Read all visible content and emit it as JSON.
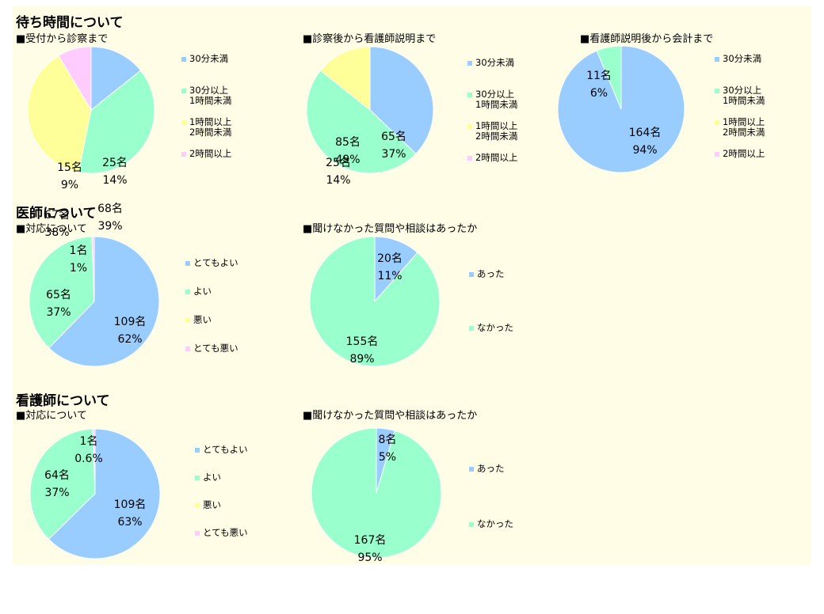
{
  "colors": {
    "blue": "#99ccff",
    "green": "#99ffcc",
    "yellow": "#ffff99",
    "pink": "#ffccff",
    "background": "#fffde6"
  },
  "sections": {
    "waiting": {
      "title": "待ち時間について"
    },
    "doctor": {
      "title": "医師について"
    },
    "nurse": {
      "title": "看護師について"
    }
  },
  "chart_data": [
    {
      "type": "pie",
      "title": "■受付から診察まで",
      "slices": [
        {
          "label": "30分未満",
          "count": "25名",
          "pct": "14%",
          "value": 25,
          "color": "#99ccff"
        },
        {
          "label": "30分以上\n1時間未満",
          "count": "68名",
          "pct": "39%",
          "value": 68,
          "color": "#99ffcc"
        },
        {
          "label": "1時間以上\n2時間未満",
          "count": "67名",
          "pct": "38%",
          "value": 67,
          "color": "#ffff99"
        },
        {
          "label": "2時間以上",
          "count": "15名",
          "pct": "9%",
          "value": 15,
          "color": "#ffccff"
        }
      ]
    },
    {
      "type": "pie",
      "title": "■診察後から看護師説明まで",
      "slices": [
        {
          "label": "30分未満",
          "count": "65名",
          "pct": "37%",
          "value": 65,
          "color": "#99ccff"
        },
        {
          "label": "30分以上\n1時間未満",
          "count": "85名",
          "pct": "49%",
          "value": 85,
          "color": "#99ffcc"
        },
        {
          "label": "1時間以上\n2時間未満",
          "count": "25名",
          "pct": "14%",
          "value": 25,
          "color": "#ffff99"
        },
        {
          "label": "2時間以上",
          "count": "",
          "pct": "",
          "value": 0,
          "color": "#ffccff"
        }
      ]
    },
    {
      "type": "pie",
      "title": "■看護師説明後から会計まで",
      "slices": [
        {
          "label": "30分未満",
          "count": "164名",
          "pct": "94%",
          "value": 164,
          "color": "#99ccff"
        },
        {
          "label": "30分以上\n1時間未満",
          "count": "11名",
          "pct": "6%",
          "value": 11,
          "color": "#99ffcc"
        },
        {
          "label": "1時間以上\n2時間未満",
          "count": "",
          "pct": "",
          "value": 0,
          "color": "#ffff99"
        },
        {
          "label": "2時間以上",
          "count": "",
          "pct": "",
          "value": 0,
          "color": "#ffccff"
        }
      ]
    },
    {
      "type": "pie",
      "title": "■対応について",
      "slices": [
        {
          "label": "とてもよい",
          "count": "109名",
          "pct": "62%",
          "value": 109,
          "color": "#99ccff"
        },
        {
          "label": "よい",
          "count": "65名",
          "pct": "37%",
          "value": 65,
          "color": "#99ffcc"
        },
        {
          "label": "悪い",
          "count": "",
          "pct": "",
          "value": 0,
          "color": "#ffff99"
        },
        {
          "label": "とても悪い",
          "count": "1名",
          "pct": "1%",
          "value": 1,
          "color": "#ffccff"
        }
      ]
    },
    {
      "type": "pie",
      "title": "■聞けなかった質問や相談はあったか",
      "slices": [
        {
          "label": "あった",
          "count": "20名",
          "pct": "11%",
          "value": 20,
          "color": "#99ccff"
        },
        {
          "label": "なかった",
          "count": "155名",
          "pct": "89%",
          "value": 155,
          "color": "#99ffcc"
        }
      ]
    },
    {
      "type": "pie",
      "title": "■対応について",
      "slices": [
        {
          "label": "とてもよい",
          "count": "109名",
          "pct": "63%",
          "value": 109,
          "color": "#99ccff"
        },
        {
          "label": "よい",
          "count": "64名",
          "pct": "37%",
          "value": 64,
          "color": "#99ffcc"
        },
        {
          "label": "悪い",
          "count": "",
          "pct": "",
          "value": 0,
          "color": "#ffff99"
        },
        {
          "label": "とても悪い",
          "count": "1名",
          "pct": "0.6%",
          "value": 1,
          "color": "#ffccff"
        }
      ]
    },
    {
      "type": "pie",
      "title": "■聞けなかった質問や相談はあったか",
      "slices": [
        {
          "label": "あった",
          "count": "8名",
          "pct": "5%",
          "value": 8,
          "color": "#99ccff"
        },
        {
          "label": "なかった",
          "count": "167名",
          "pct": "95%",
          "value": 167,
          "color": "#99ffcc"
        }
      ]
    }
  ]
}
